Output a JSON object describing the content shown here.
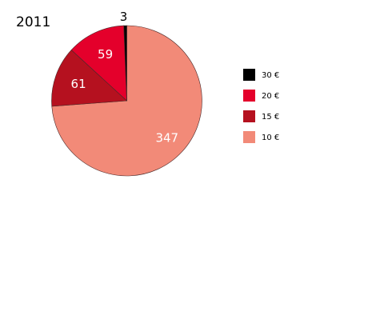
{
  "chart_data": {
    "type": "pie",
    "title": "2011",
    "start": "top",
    "direction": "clockwise",
    "legend_position": "right",
    "slices": [
      {
        "label": "10 €",
        "value": 347,
        "display": "347",
        "color": "#f28a78",
        "label_color": "#ffffff"
      },
      {
        "label": "15 €",
        "value": 61,
        "display": "61",
        "color": "#b5111f",
        "label_color": "#ffffff"
      },
      {
        "label": "20 €",
        "value": 59,
        "display": "59",
        "color": "#e4002b",
        "label_color": "#ffffff"
      },
      {
        "label": "30 €",
        "value": 3,
        "display": "3",
        "color": "#000000",
        "label_color": "#000000"
      }
    ],
    "legend_order": [
      "30 €",
      "20 €",
      "15 €",
      "10 €"
    ]
  }
}
